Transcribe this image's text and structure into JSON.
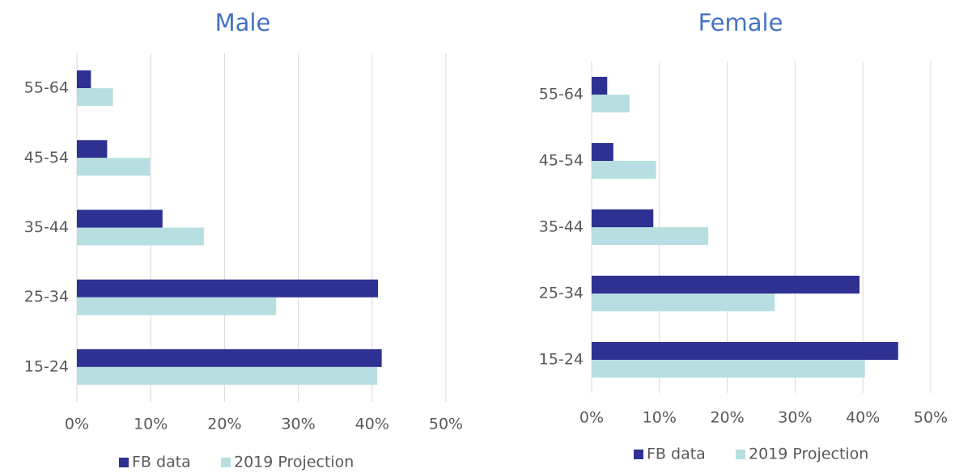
{
  "chart_data": [
    {
      "type": "hbar",
      "title": "Male",
      "categories": [
        "15-24",
        "25-34",
        "35-44",
        "45-54",
        "55-64"
      ],
      "series": [
        {
          "name": "FB data",
          "color": "#2e3092",
          "values": [
            41.3,
            40.8,
            11.6,
            4.1,
            1.9
          ]
        },
        {
          "name": "2019 Projection",
          "color": "#b7dfe1",
          "values": [
            40.7,
            27.0,
            17.2,
            9.9,
            4.9
          ]
        }
      ],
      "xlim": [
        0,
        50
      ],
      "xticks": [
        {
          "value": 0,
          "label": "0%"
        },
        {
          "value": 10,
          "label": "10%"
        },
        {
          "value": 20,
          "label": "20%"
        },
        {
          "value": 30,
          "label": "30%"
        },
        {
          "value": 40,
          "label": "40%"
        },
        {
          "value": 50,
          "label": "50%"
        }
      ],
      "grid": true
    },
    {
      "type": "hbar",
      "title": "Female",
      "categories": [
        "15-24",
        "25-34",
        "35-44",
        "45-54",
        "55-64"
      ],
      "series": [
        {
          "name": "FB data",
          "color": "#2e3092",
          "values": [
            45.2,
            39.5,
            9.1,
            3.2,
            2.3
          ]
        },
        {
          "name": "2019 Projection",
          "color": "#b7dfe1",
          "values": [
            40.3,
            27.0,
            17.2,
            9.5,
            5.6
          ]
        }
      ],
      "xlim": [
        0,
        50
      ],
      "xticks": [
        {
          "value": 0,
          "label": "0%"
        },
        {
          "value": 10,
          "label": "10%"
        },
        {
          "value": 20,
          "label": "20%"
        },
        {
          "value": 30,
          "label": "30%"
        },
        {
          "value": 40,
          "label": "40%"
        },
        {
          "value": 50,
          "label": "50%"
        }
      ],
      "grid": true
    }
  ]
}
